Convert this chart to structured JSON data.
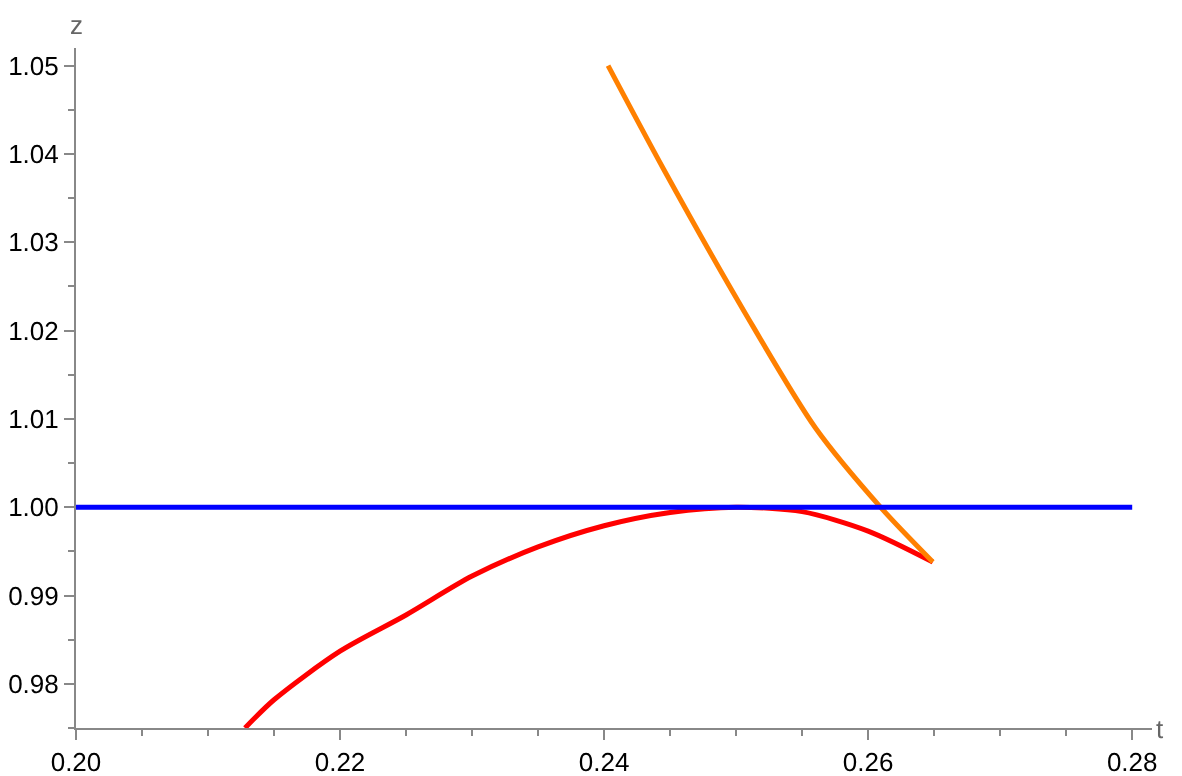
{
  "chart_data": {
    "type": "line",
    "xlabel": "t",
    "ylabel": "z",
    "xlim": [
      0.2,
      0.2815
    ],
    "ylim": [
      0.975,
      1.052
    ],
    "xticks": [
      {
        "value": 0.2,
        "label": "0.20"
      },
      0.22,
      0.24,
      0.26,
      0.28
    ],
    "yticks": [
      0.98,
      0.99,
      {
        "value": 1,
        "label": "1.00"
      },
      1.01,
      1.02,
      1.03,
      1.04,
      1.05
    ],
    "marker": "none",
    "line_style": "solid",
    "series": [
      {
        "color": "#ff0000",
        "x": [
          0.2128,
          0.215,
          0.22,
          0.225,
          0.23,
          0.235,
          0.24,
          0.245,
          0.25,
          0.255,
          0.26,
          0.2649
        ],
        "values": [
          0.975,
          0.9782,
          0.9837,
          0.9878,
          0.9922,
          0.9955,
          0.9979,
          0.9994,
          1.0,
          0.9995,
          0.9973,
          0.9938
        ]
      },
      {
        "color": "#ff8000",
        "x": [
          0.2403,
          0.2445,
          0.2506,
          0.256,
          0.261,
          0.2649
        ],
        "values": [
          1.05,
          1.0383,
          1.0222,
          1.009,
          0.9999,
          0.9938
        ]
      },
      {
        "color": "#0000ff",
        "x": [
          0.2,
          0.28
        ],
        "values": [
          1.0,
          1.0
        ]
      }
    ]
  }
}
